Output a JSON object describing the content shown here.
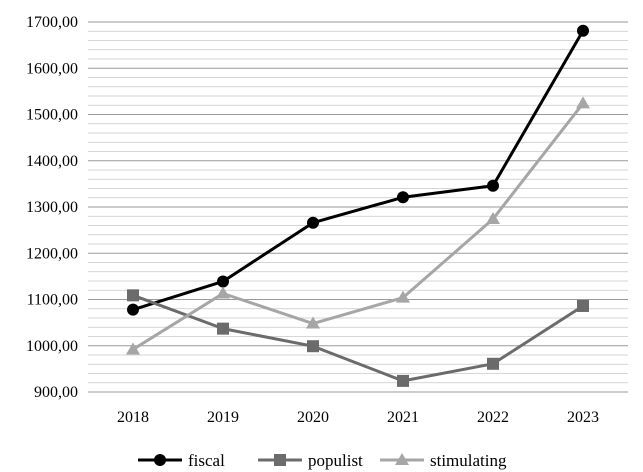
{
  "chart_data": {
    "type": "line",
    "categories": [
      "2018",
      "2019",
      "2020",
      "2021",
      "2022",
      "2023"
    ],
    "y_tick_labels": [
      "900,00",
      "1000,00",
      "1100,00",
      "1200,00",
      "1300,00",
      "1400,00",
      "1500,00",
      "1600,00",
      "1700,00"
    ],
    "ylim": [
      900,
      1700
    ],
    "grid": "horizontal",
    "legend_position": "bottom",
    "series": [
      {
        "name": "fiscal",
        "marker": "circle",
        "color": "#000000",
        "values": [
          1078,
          1139,
          1266,
          1321,
          1346,
          1681
        ]
      },
      {
        "name": "populist",
        "marker": "square",
        "color": "#6b6b6b",
        "values": [
          1109,
          1037,
          999,
          924,
          961,
          1086
        ]
      },
      {
        "name": "stimulating",
        "marker": "triangle",
        "color": "#a6a6a6",
        "values": [
          992,
          1113,
          1048,
          1104,
          1274,
          1524
        ]
      }
    ]
  }
}
